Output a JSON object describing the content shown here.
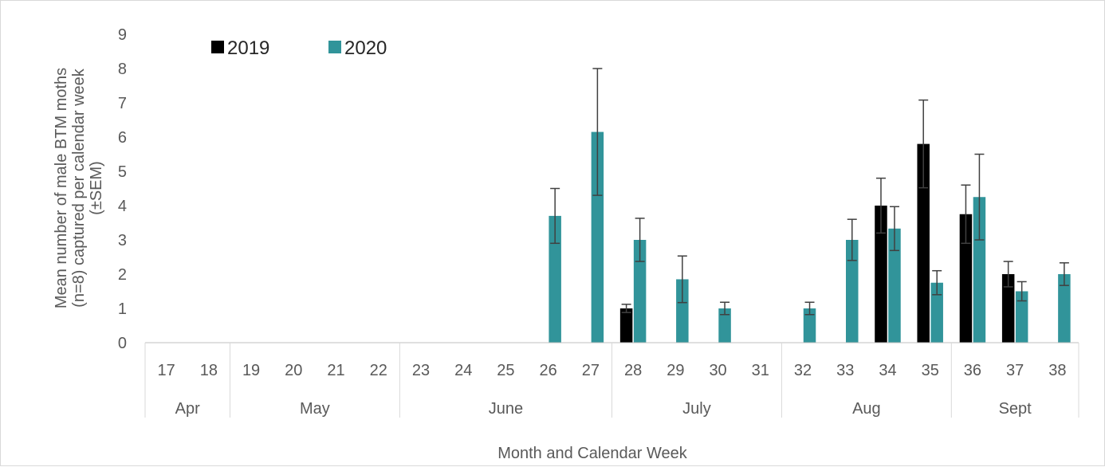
{
  "chart_data": {
    "type": "bar",
    "ylabel_lines": [
      "Mean number of male BTM moths",
      "(n=8) captured per calendar week",
      "(±SEM)"
    ],
    "xlabel": "Month and Calendar Week",
    "ylim": [
      0,
      9
    ],
    "yticks": [
      "0",
      "1",
      "2",
      "3",
      "4",
      "5",
      "6",
      "7",
      "8",
      "9"
    ],
    "categories": [
      "17",
      "18",
      "19",
      "20",
      "21",
      "22",
      "23",
      "24",
      "25",
      "26",
      "27",
      "28",
      "29",
      "30",
      "31",
      "32",
      "33",
      "34",
      "35",
      "36",
      "37",
      "38"
    ],
    "months": [
      {
        "label": "Apr",
        "start": 0,
        "end": 2
      },
      {
        "label": "May",
        "start": 2,
        "end": 6
      },
      {
        "label": "June",
        "start": 6,
        "end": 11
      },
      {
        "label": "July",
        "start": 11,
        "end": 15
      },
      {
        "label": "Aug",
        "start": 15,
        "end": 19
      },
      {
        "label": "Sept",
        "start": 19,
        "end": 22
      }
    ],
    "legend_position": "top-left",
    "series": [
      {
        "name": "2019",
        "color": "#000000",
        "values": [
          null,
          null,
          null,
          null,
          null,
          null,
          null,
          null,
          null,
          null,
          null,
          1.0,
          null,
          null,
          null,
          null,
          null,
          4.0,
          5.8,
          3.75,
          2.0,
          null
        ],
        "err": [
          null,
          null,
          null,
          null,
          null,
          null,
          null,
          null,
          null,
          null,
          null,
          0.12,
          null,
          null,
          null,
          null,
          null,
          0.8,
          1.28,
          0.85,
          0.37,
          null
        ]
      },
      {
        "name": "2020",
        "color": "#31949A",
        "values": [
          null,
          null,
          null,
          null,
          null,
          null,
          null,
          null,
          null,
          3.7,
          6.15,
          3.0,
          1.85,
          1.0,
          null,
          1.0,
          3.0,
          3.33,
          1.75,
          4.25,
          1.5,
          2.0
        ],
        "err": [
          null,
          null,
          null,
          null,
          null,
          null,
          null,
          null,
          null,
          0.8,
          1.85,
          0.63,
          0.68,
          0.18,
          null,
          0.18,
          0.6,
          0.64,
          0.35,
          1.25,
          0.28,
          0.33
        ]
      }
    ]
  }
}
